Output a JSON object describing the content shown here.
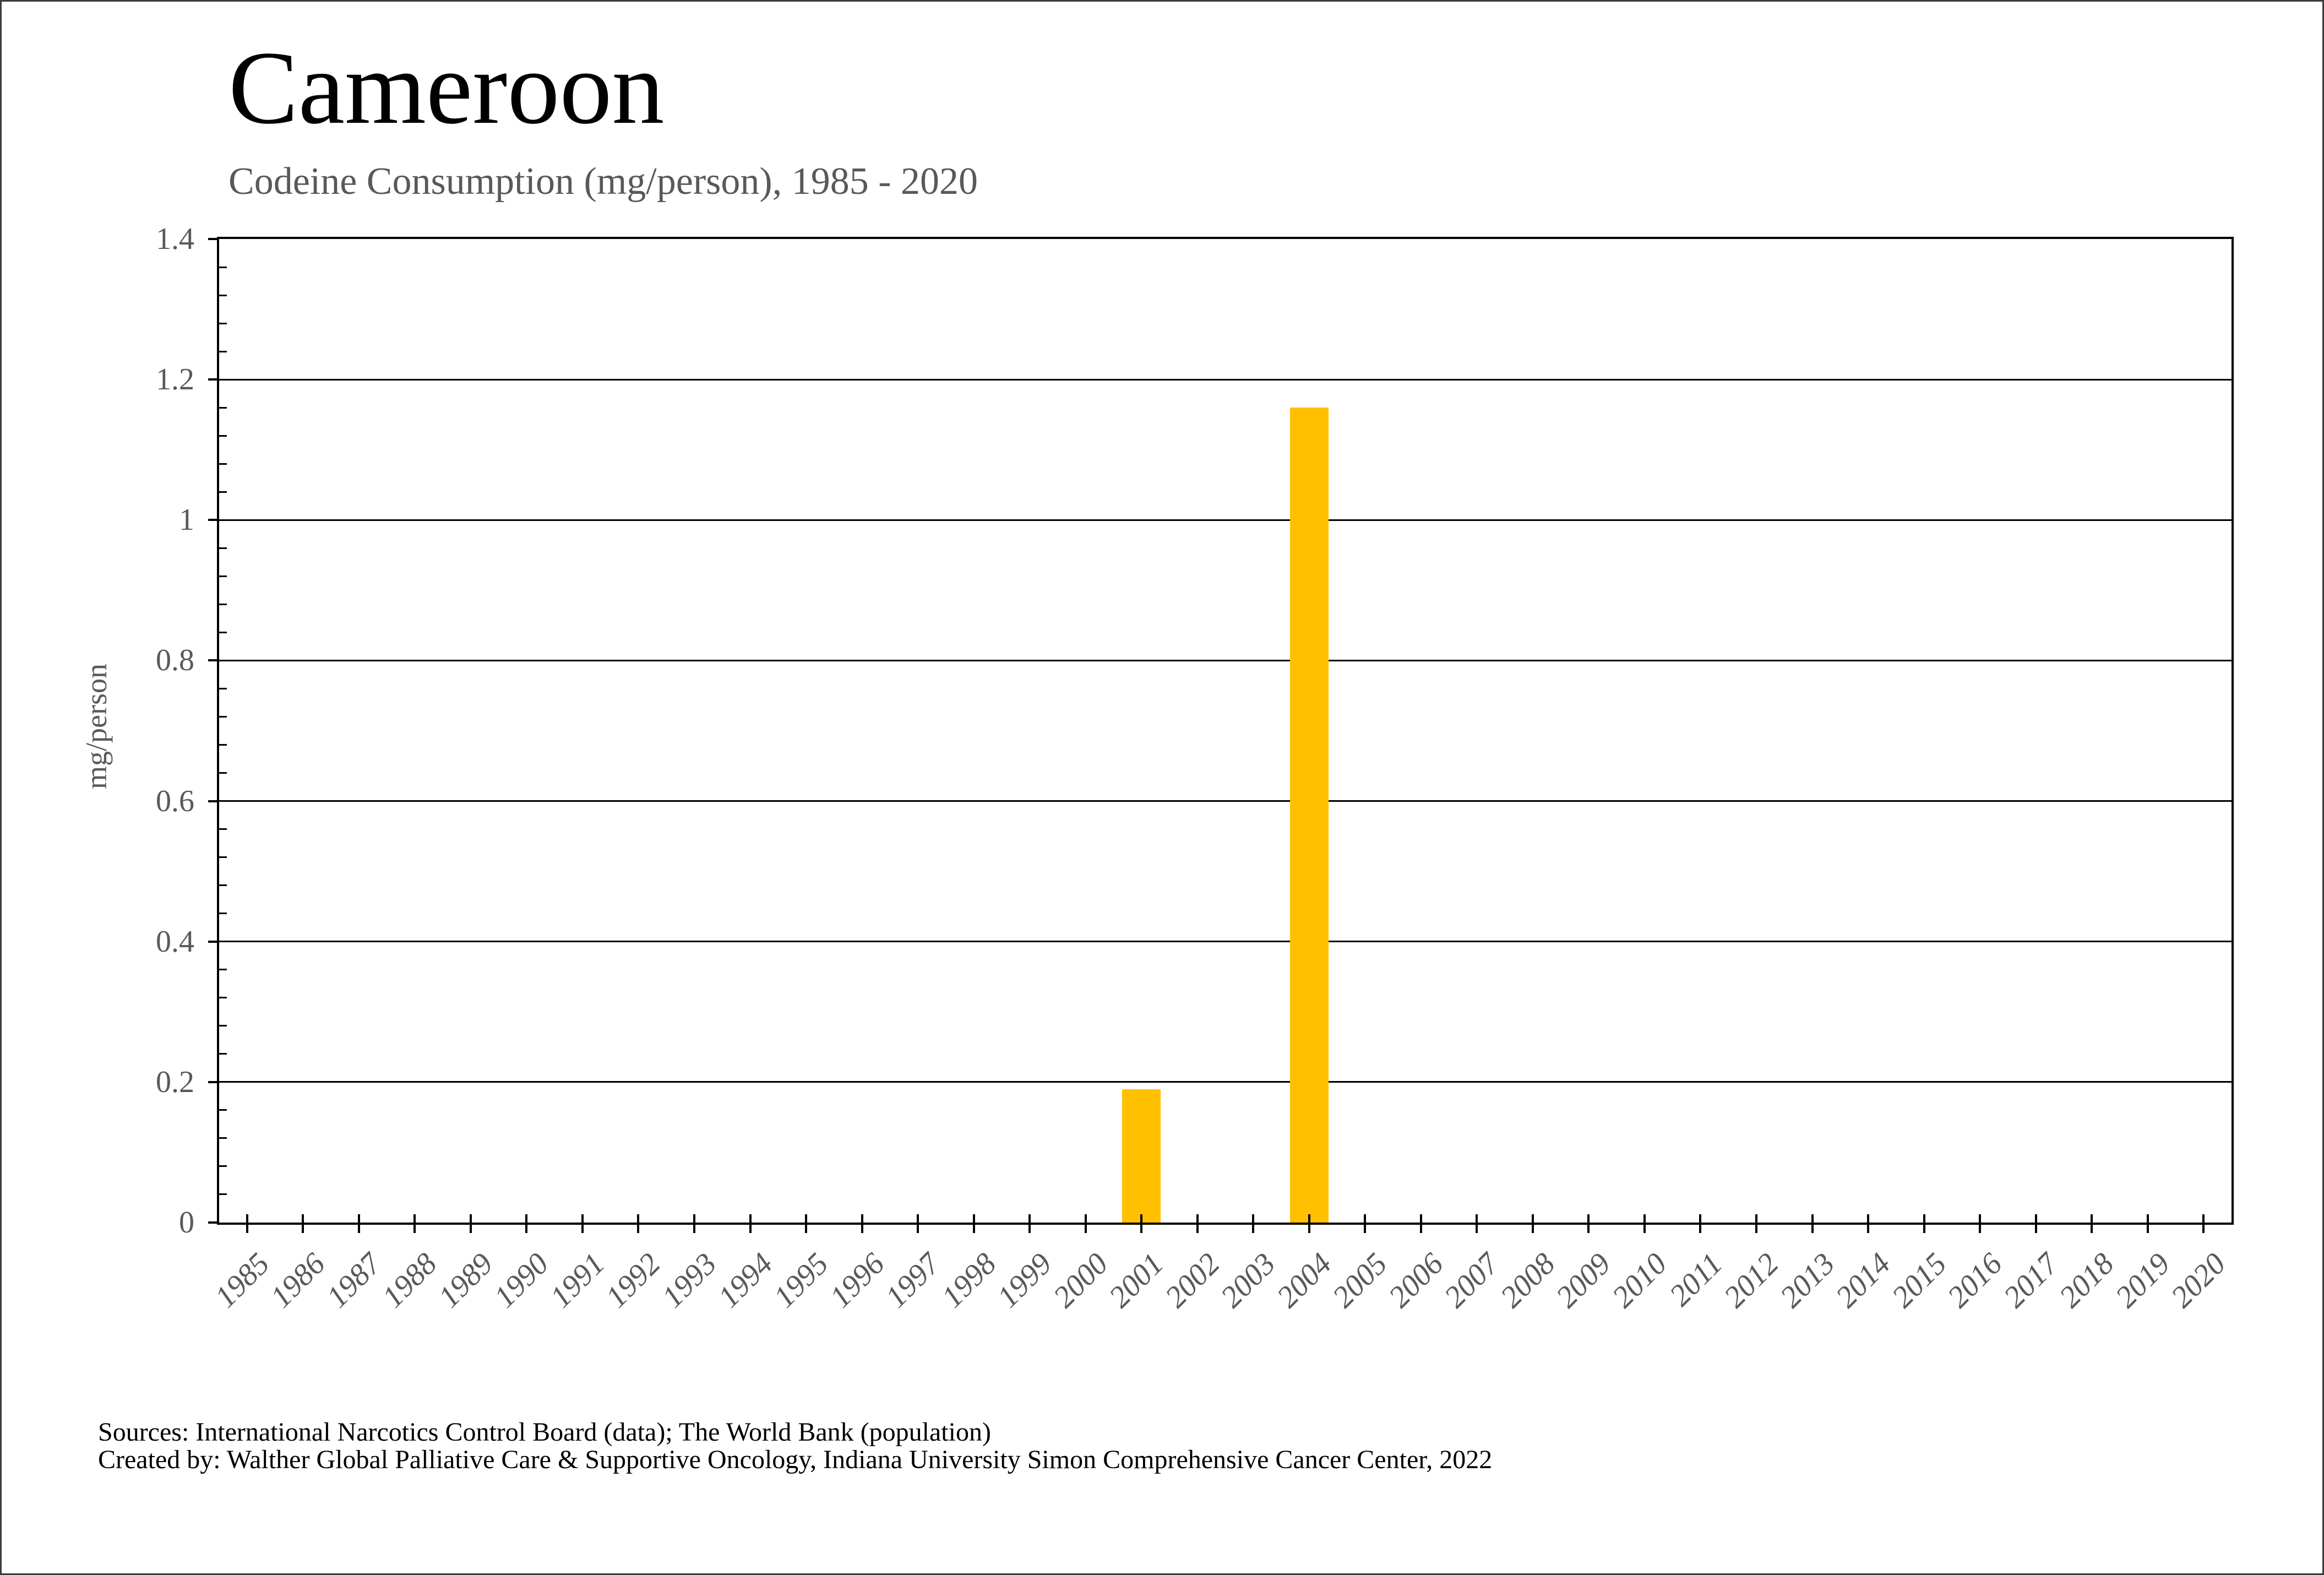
{
  "chart_data": {
    "type": "bar",
    "title": "Cameroon",
    "subtitle": "Codeine Consumption (mg/person), 1985 - 2020",
    "xlabel": "",
    "ylabel": "mg/person",
    "categories": [
      "1985",
      "1986",
      "1987",
      "1988",
      "1989",
      "1990",
      "1991",
      "1992",
      "1993",
      "1994",
      "1995",
      "1996",
      "1997",
      "1998",
      "1999",
      "2000",
      "2001",
      "2002",
      "2003",
      "2004",
      "2005",
      "2006",
      "2007",
      "2008",
      "2009",
      "2010",
      "2011",
      "2012",
      "2013",
      "2014",
      "2015",
      "2016",
      "2017",
      "2018",
      "2019",
      "2020"
    ],
    "values": [
      0,
      0,
      0,
      0,
      0,
      0,
      0,
      0,
      0,
      0,
      0,
      0,
      0,
      0,
      0,
      0,
      0.19,
      0,
      0,
      1.16,
      0,
      0,
      0,
      0,
      0,
      0,
      0,
      0,
      0,
      0,
      0,
      0,
      0,
      0,
      0,
      0
    ],
    "ylim": [
      0,
      1.4
    ],
    "yticks": [
      {
        "v": 0,
        "label": "0"
      },
      {
        "v": 0.2,
        "label": "0.2"
      },
      {
        "v": 0.4,
        "label": "0.4"
      },
      {
        "v": 0.6,
        "label": "0.6"
      },
      {
        "v": 0.8,
        "label": "0.8"
      },
      {
        "v": 1,
        "label": "1"
      },
      {
        "v": 1.2,
        "label": "1.2"
      },
      {
        "v": 1.4,
        "label": "1.4"
      }
    ],
    "y_minor_step": 0.04,
    "grid": true,
    "legend": false,
    "bar_color": "#FFC000",
    "text_color": "#595959",
    "line_color": "#000000"
  },
  "footer": {
    "line1": "Sources: International Narcotics Control Board (data); The World Bank (population)",
    "line2": "Created by: Walther Global Palliative Care & Supportive Oncology, Indiana University Simon Comprehensive Cancer Center, 2022"
  }
}
